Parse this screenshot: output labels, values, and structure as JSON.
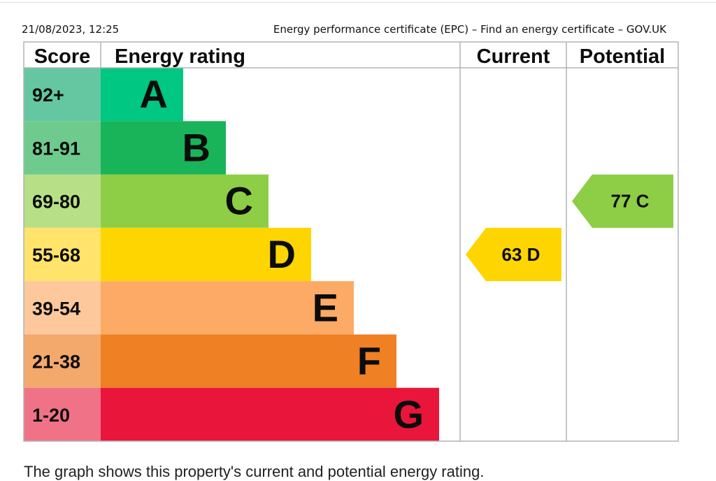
{
  "header": {
    "date": "21/08/2023, 12:25",
    "title": "Energy performance certificate (EPC) – Find an energy certificate – GOV.UK"
  },
  "chart_data": {
    "type": "bar",
    "columns": [
      "Score",
      "Energy rating",
      "Current",
      "Potential"
    ],
    "bands": [
      {
        "letter": "A",
        "range": "92+",
        "color": "#00c781",
        "score_color": "#64c7a2"
      },
      {
        "letter": "B",
        "range": "81-91",
        "color": "#19b459",
        "score_color": "#6ecb8d"
      },
      {
        "letter": "C",
        "range": "69-80",
        "color": "#8dce46",
        "score_color": "#b7df86"
      },
      {
        "letter": "D",
        "range": "55-68",
        "color": "#ffd500",
        "score_color": "#ffe36a"
      },
      {
        "letter": "E",
        "range": "39-54",
        "color": "#fcaa65",
        "score_color": "#fdc89b"
      },
      {
        "letter": "F",
        "range": "21-38",
        "color": "#ef8023",
        "score_color": "#f3a86c"
      },
      {
        "letter": "G",
        "range": "1-20",
        "color": "#e9153b",
        "score_color": "#f07287"
      }
    ],
    "current": {
      "score": 63,
      "band": "D",
      "color": "#ffd500"
    },
    "potential": {
      "score": 77,
      "band": "C",
      "color": "#8dce46"
    }
  },
  "footer": {
    "text": "The graph shows this property's current and potential energy rating."
  }
}
